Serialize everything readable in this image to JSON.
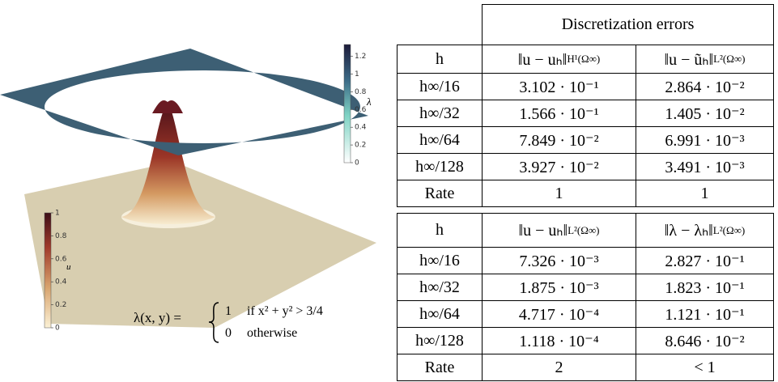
{
  "figure": {
    "colorbar_lambda": {
      "label": "λ",
      "ticks": [
        0,
        0.2,
        0.4,
        0.6,
        0.8,
        1,
        1.2
      ]
    },
    "colorbar_u": {
      "label": "u",
      "ticks": [
        0,
        0.2,
        0.4,
        0.6,
        0.8,
        1
      ]
    },
    "formula": {
      "lhs": "λ(x, y) =",
      "case1_value": "1",
      "case1_condition": "if x² + y² > 3/4",
      "case2_value": "0",
      "case2_condition": "otherwise"
    }
  },
  "table1": {
    "title": "Discretization errors",
    "header": [
      "h",
      {
        "main": "‖u − uₕ‖",
        "sub": "H¹(Ω∞)"
      },
      {
        "main": "‖u − ũₕ‖",
        "sub": "L²(Ω∞)"
      }
    ],
    "rows": [
      [
        "h∞/16",
        "3.102 · 10⁻¹",
        "2.864 · 10⁻²"
      ],
      [
        "h∞/32",
        "1.566 · 10⁻¹",
        "1.405 · 10⁻²"
      ],
      [
        "h∞/64",
        "7.849 · 10⁻²",
        "6.991 · 10⁻³"
      ],
      [
        "h∞/128",
        "3.927 · 10⁻²",
        "3.491 · 10⁻³"
      ],
      [
        "Rate",
        "1",
        "1"
      ]
    ]
  },
  "table2": {
    "header": [
      "h",
      {
        "main": "‖u − uₕ‖",
        "sub": "L²(Ω∞)"
      },
      {
        "main": "‖λ − λₕ‖",
        "sub": "L²(Ω∞)"
      }
    ],
    "rows": [
      [
        "h∞/16",
        "7.326 · 10⁻³",
        "2.827 · 10⁻¹"
      ],
      [
        "h∞/32",
        "1.875 · 10⁻³",
        "1.823 · 10⁻¹"
      ],
      [
        "h∞/64",
        "4.717 · 10⁻⁴",
        "1.121 · 10⁻¹"
      ],
      [
        "h∞/128",
        "1.118 · 10⁻⁴",
        "8.646 · 10⁻²"
      ],
      [
        "Rate",
        "2",
        "< 1"
      ]
    ]
  }
}
